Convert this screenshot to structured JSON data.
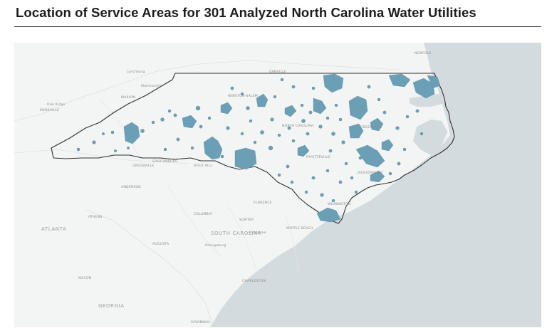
{
  "title": "Location of Service Areas for 301 Analyzed North Carolina Water Utilities",
  "map": {
    "land_color": "#f3f4f4",
    "ocean_color": "#d4dbde",
    "service_area_color": "#6b9fb6",
    "state_outline_color": "#2f2f2f",
    "labels": {
      "norfolk": "NORFOLK",
      "danville": "DANVILLE",
      "winston_salem": "WINSTON-SALEM",
      "north_carolina": "NORTH CAROLINA",
      "fayetteville": "FAYETTEVILLE",
      "greenville_nc": "GREENVILLE",
      "jacksonville": "JACKSONVILLE",
      "wilmington": "WILMINGTON",
      "florence": "FLORENCE",
      "myrtle_beach": "MYRTLE BEACH",
      "rock_hill": "ROCK HILL",
      "greenville_sc": "GREENVILLE",
      "spartanburg": "SPARTANBURG",
      "anderson": "ANDERSON",
      "columbia": "COLUMBIA",
      "sumter": "SUMTER",
      "south_carolina": "SOUTH CAROLINA",
      "orangeburg": "Orangeburg",
      "kingstree": "Kingstree",
      "charleston": "CHARLESTON",
      "augusta": "AUGUSTA",
      "athens": "ATHENS",
      "atlanta": "ATLANTA",
      "macon": "MACON",
      "georgia": "GEORGIA",
      "savannah": "SAVANNAH",
      "oak_ridge": "Oak Ridge",
      "knoxville": "KNOXVILLE",
      "marion": "MARION",
      "lynchburg": "Lynchburg",
      "martinsville": "Martinsville"
    }
  }
}
